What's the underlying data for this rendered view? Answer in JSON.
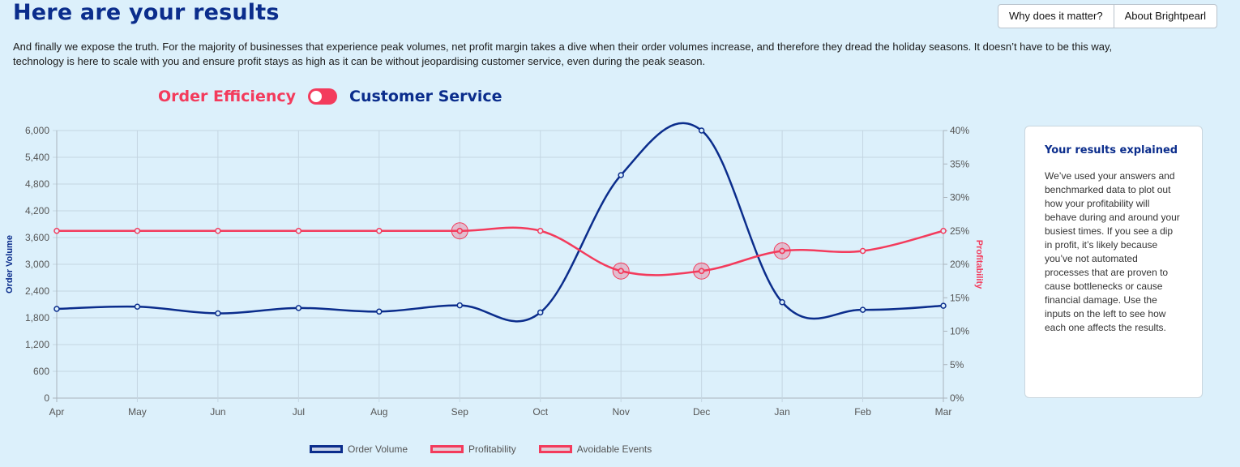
{
  "header": {
    "title": "Here are your results",
    "buttons": [
      "Why does it matter?",
      "About Brightpearl"
    ]
  },
  "intro": "And finally we expose the truth. For the majority of businesses that experience peak volumes, net profit margin takes a dive when their order volumes increase, and therefore they dread the holiday seasons. It doesn’t have to be this way, technology is here to scale with you and ensure profit stays as high as it can be without jeopardising customer service, even during the peak season.",
  "toggle": {
    "left_label": "Order Efficiency",
    "right_label": "Customer Service",
    "selected": "Order Efficiency"
  },
  "colors": {
    "navy": "#0b2d8c",
    "red": "#f33b5c",
    "background": "#dcf0fb"
  },
  "explain": {
    "title": "Your results explained",
    "body": "We’ve used your answers and benchmarked data to plot out how your profitability will behave during and around your busiest times. If you see a dip in profit, it’s likely because you’ve not automated processes that are proven to cause bottlenecks or cause financial damage. Use the inputs on the left to see how each one affects the results."
  },
  "chart_data": {
    "type": "line",
    "categories": [
      "Apr",
      "May",
      "Jun",
      "Jul",
      "Aug",
      "Sep",
      "Oct",
      "Nov",
      "Dec",
      "Jan",
      "Feb",
      "Mar"
    ],
    "series": [
      {
        "name": "Order Volume",
        "axis": "left",
        "values": [
          2000,
          2050,
          1900,
          2020,
          1940,
          2080,
          1920,
          5000,
          6000,
          2150,
          1980,
          2070
        ]
      },
      {
        "name": "Profitability",
        "axis": "right",
        "values": [
          25,
          25,
          25,
          25,
          25,
          25,
          25,
          19,
          19,
          22,
          22,
          25
        ]
      },
      {
        "name": "Avoidable Events",
        "axis": "right",
        "points": [
          {
            "x": "Sep",
            "y": 25
          },
          {
            "x": "Nov",
            "y": 19
          },
          {
            "x": "Dec",
            "y": 19
          },
          {
            "x": "Jan",
            "y": 22
          }
        ]
      }
    ],
    "left_axis": {
      "label": "Order Volume",
      "ticks": [
        "0",
        "600",
        "1,200",
        "1,800",
        "2,400",
        "3,000",
        "3,600",
        "4,200",
        "4,800",
        "5,400",
        "6,000"
      ],
      "range": [
        0,
        6000
      ]
    },
    "right_axis": {
      "label": "Profitability",
      "ticks": [
        "0%",
        "5%",
        "10%",
        "15%",
        "20%",
        "25%",
        "30%",
        "35%",
        "40%"
      ],
      "range": [
        0,
        40
      ]
    },
    "legend": [
      "Order Volume",
      "Profitability",
      "Avoidable Events"
    ],
    "legend_position": "bottom",
    "grid": true
  }
}
